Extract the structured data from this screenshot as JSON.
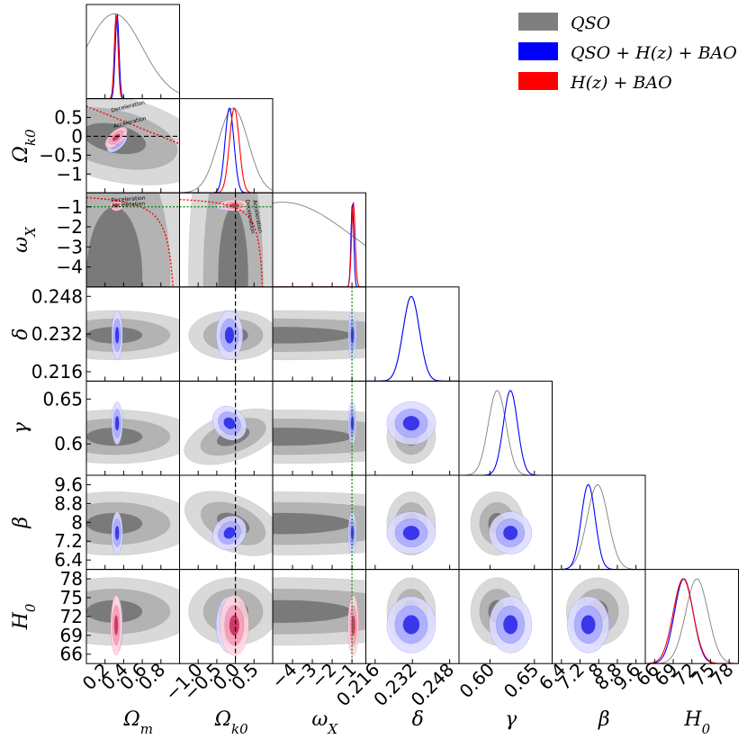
{
  "chart_data": {
    "type": "corner",
    "title": "",
    "parameters": [
      {
        "key": "Om",
        "label": "Ωm",
        "range": [
          0,
          1
        ],
        "ticks": [
          0.2,
          0.4,
          0.6,
          0.8
        ],
        "tick_labels": [
          "0.2",
          "0.4",
          "0.6",
          "0.8"
        ]
      },
      {
        "key": "Ok0",
        "label": "Ωk0",
        "range": [
          -1.5,
          1.0
        ],
        "ticks": [
          -1.0,
          -0.5,
          0.0,
          0.5
        ],
        "tick_labels": [
          "−1.0",
          "−0.5",
          "0.0",
          "0.5"
        ]
      },
      {
        "key": "wX",
        "label": "ωX",
        "range": [
          -5.0,
          -0.3
        ],
        "ticks": [
          -4,
          -3,
          -2,
          -1
        ],
        "tick_labels": [
          "−4",
          "−3",
          "−2",
          "−1"
        ]
      },
      {
        "key": "delta",
        "label": "δ",
        "range": [
          0.212,
          0.252
        ],
        "ticks": [
          0.216,
          0.232,
          0.248
        ],
        "tick_labels": [
          "0.216",
          "0.232",
          "0.248"
        ]
      },
      {
        "key": "gamma",
        "label": "γ",
        "range": [
          0.565,
          0.67
        ],
        "ticks": [
          0.6,
          0.65
        ],
        "tick_labels": [
          "0.60",
          "0.65"
        ]
      },
      {
        "key": "beta",
        "label": "β",
        "range": [
          6.0,
          10.0
        ],
        "ticks": [
          6.4,
          7.2,
          8.0,
          8.8,
          9.6
        ],
        "tick_labels": [
          "6.4",
          "7.2",
          "8",
          "8.8",
          "9.6"
        ]
      },
      {
        "key": "H0",
        "label": "H0",
        "range": [
          64.5,
          79.5
        ],
        "ticks": [
          66,
          69,
          72,
          75,
          78
        ],
        "tick_labels": [
          "66",
          "69",
          "72",
          "75",
          "78"
        ]
      }
    ],
    "y_tick_labels": {
      "Ok0": [
        "0.5",
        "0",
        "−0.5",
        "−1"
      ],
      "wX": [
        "−1",
        "−2",
        "−3",
        "−4"
      ],
      "delta": [
        "0.248",
        "0.232",
        "0.216"
      ],
      "gamma": [
        "0.65",
        "0.6"
      ],
      "beta": [
        "9.6",
        "8.8",
        "8",
        "7.2",
        "6.4"
      ],
      "H0": [
        "78",
        "75",
        "72",
        "69",
        "66"
      ]
    },
    "y_ticks": {
      "Ok0": [
        0.5,
        0,
        -0.5,
        -1
      ],
      "wX": [
        -1,
        -2,
        -3,
        -4
      ],
      "delta": [
        0.248,
        0.232,
        0.216
      ],
      "gamma": [
        0.65,
        0.6
      ],
      "beta": [
        9.6,
        8.8,
        8.0,
        7.2,
        6.4
      ],
      "H0": [
        78,
        75,
        72,
        69,
        66
      ]
    },
    "series": [
      {
        "name": "QSO",
        "legend": "QSO",
        "color": "#7f7f7f",
        "fill_levels": [
          "#d9d9d9",
          "#b3b3b3",
          "#7a7a7a"
        ]
      },
      {
        "name": "QSO+H(z)+BAO",
        "legend": "QSO + H(z) + BAO",
        "color": "#0000ff",
        "fill_levels": [
          "#dcdcff",
          "#a8a8ff",
          "#2323e6"
        ]
      },
      {
        "name": "H(z)+BAO",
        "legend": "H(z) + BAO",
        "color": "#ff0000",
        "fill_levels": [
          "#ffd6df",
          "#f59ab4",
          "#c8285c"
        ]
      }
    ],
    "posteriors": {
      "QSO": {
        "Om": [
          0.3,
          0.3
        ],
        "Ok0": [
          -0.06,
          0.4
        ],
        "wX": [
          -4.5,
          3.5
        ],
        "delta": [
          0.2315,
          0.0035
        ],
        "gamma": [
          0.608,
          0.01
        ],
        "beta": [
          7.95,
          0.45
        ],
        "H0": [
          72.8,
          1.8
        ]
      },
      "QSO+H(z)+BAO": {
        "Om": [
          0.33,
          0.02
        ],
        "Ok0": [
          -0.16,
          0.12
        ],
        "wX": [
          -0.98,
          0.07
        ],
        "delta": [
          0.2315,
          0.0035
        ],
        "gamma": [
          0.623,
          0.008
        ],
        "beta": [
          7.55,
          0.3
        ],
        "H0": [
          70.7,
          1.5
        ]
      },
      "H(z)+BAO": {
        "Om": [
          0.32,
          0.02
        ],
        "Ok0": [
          -0.03,
          0.13
        ],
        "wX": [
          -0.93,
          0.09
        ],
        "H0": [
          70.6,
          1.6
        ]
      }
    },
    "reference_lines": [
      {
        "parameter": "Ok0",
        "value": 0,
        "style": "dashed",
        "color": "#000000"
      },
      {
        "parameter": "wX",
        "value": -1,
        "style": "dotted",
        "color": "#008000"
      }
    ],
    "annotations": [
      {
        "text": "Deceleration",
        "panel": "Ok0-Om"
      },
      {
        "text": "Acceleration",
        "panel": "Ok0-Om"
      },
      {
        "text": "Deceleration",
        "panel": "wX-Om"
      },
      {
        "text": "Acceleration",
        "panel": "wX-Om"
      },
      {
        "text": "Deceleration",
        "panel": "wX-Ok0"
      },
      {
        "text": "Acceleration",
        "panel": "wX-Ok0"
      }
    ],
    "legend_position": "top-right"
  }
}
